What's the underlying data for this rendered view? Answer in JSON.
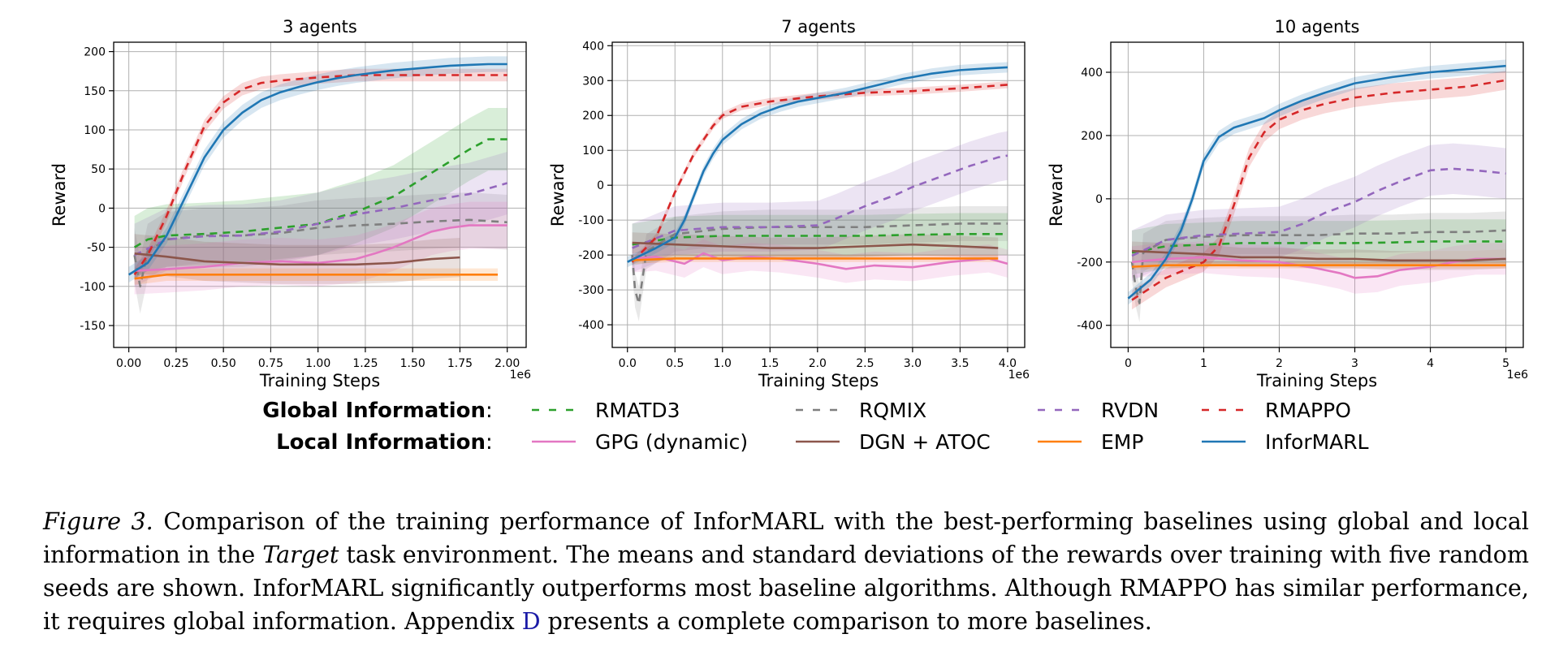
{
  "chart_data": [
    {
      "type": "line",
      "title": "3 agents",
      "xlabel": "Training Steps",
      "ylabel": "Reward",
      "x_offset_label": "1e6",
      "xlim": [
        -0.08,
        2.1
      ],
      "ylim": [
        -178,
        212
      ],
      "xticks": [
        0.0,
        0.25,
        0.5,
        0.75,
        1.0,
        1.25,
        1.5,
        1.75,
        2.0
      ],
      "xtick_labels": [
        "0.00",
        "0.25",
        "0.50",
        "0.75",
        "1.00",
        "1.25",
        "1.50",
        "1.75",
        "2.00"
      ],
      "yticks": [
        -150,
        -100,
        -50,
        0,
        50,
        100,
        150,
        200
      ],
      "grid": true,
      "series": [
        {
          "name": "RMATD3",
          "x": [
            0.03,
            0.1,
            0.2,
            0.4,
            0.6,
            0.8,
            1.0,
            1.1,
            1.2,
            1.3,
            1.4,
            1.5,
            1.6,
            1.7,
            1.8,
            1.9,
            2.0
          ],
          "y": [
            -50,
            -40,
            -35,
            -33,
            -30,
            -25,
            -20,
            -12,
            -5,
            5,
            15,
            30,
            45,
            60,
            75,
            88,
            88
          ],
          "band": 40
        },
        {
          "name": "RQMIX",
          "x": [
            0.03,
            0.06,
            0.1,
            0.2,
            0.4,
            0.6,
            0.8,
            1.0,
            1.2,
            1.4,
            1.6,
            1.8,
            2.0
          ],
          "y": [
            -60,
            -100,
            -55,
            -40,
            -35,
            -35,
            -32,
            -25,
            -22,
            -20,
            -17,
            -15,
            -18
          ],
          "band": 35
        },
        {
          "name": "RVDN",
          "x": [
            0.03,
            0.2,
            0.4,
            0.6,
            0.8,
            1.0,
            1.2,
            1.4,
            1.6,
            1.8,
            1.9,
            2.0
          ],
          "y": [
            -60,
            -40,
            -36,
            -35,
            -30,
            -20,
            -8,
            0,
            10,
            18,
            25,
            32
          ],
          "band": 40
        },
        {
          "name": "RMAPPO",
          "x": [
            0.03,
            0.1,
            0.2,
            0.3,
            0.4,
            0.5,
            0.6,
            0.7,
            0.8,
            0.9,
            1.0,
            1.2,
            1.4,
            1.6,
            1.8,
            2.0
          ],
          "y": [
            -85,
            -60,
            -10,
            50,
            105,
            135,
            152,
            160,
            163,
            165,
            167,
            170,
            170,
            170,
            170,
            170
          ],
          "band": 8
        },
        {
          "name": "GPG (dynamic)",
          "x": [
            0.03,
            0.2,
            0.4,
            0.6,
            0.8,
            1.0,
            1.2,
            1.3,
            1.4,
            1.5,
            1.6,
            1.7,
            1.8,
            2.0
          ],
          "y": [
            -80,
            -78,
            -75,
            -70,
            -68,
            -70,
            -65,
            -58,
            -50,
            -40,
            -30,
            -25,
            -22,
            -22
          ],
          "band": 30
        },
        {
          "name": "DGN + ATOC",
          "x": [
            0.03,
            0.2,
            0.4,
            0.6,
            0.8,
            1.0,
            1.2,
            1.4,
            1.6,
            1.75
          ],
          "y": [
            -58,
            -62,
            -68,
            -70,
            -72,
            -72,
            -72,
            -70,
            -65,
            -63
          ],
          "band": 25
        },
        {
          "name": "EMP",
          "x": [
            0.03,
            0.2,
            0.5,
            1.0,
            1.5,
            1.95
          ],
          "y": [
            -90,
            -85,
            -85,
            -85,
            -85,
            -85
          ],
          "band": 8
        },
        {
          "name": "InforMARL",
          "x": [
            0.0,
            0.1,
            0.2,
            0.3,
            0.4,
            0.5,
            0.6,
            0.7,
            0.8,
            0.9,
            1.0,
            1.1,
            1.2,
            1.3,
            1.4,
            1.5,
            1.6,
            1.7,
            1.8,
            1.9,
            2.0
          ],
          "y": [
            -85,
            -70,
            -35,
            15,
            65,
            100,
            122,
            138,
            148,
            155,
            161,
            166,
            170,
            173,
            176,
            178,
            180,
            182,
            183,
            184,
            184
          ],
          "band": 10
        }
      ]
    },
    {
      "type": "line",
      "title": "7 agents",
      "xlabel": "Training Steps",
      "ylabel": "Reward",
      "x_offset_label": "1e6",
      "xlim": [
        -0.16,
        4.18
      ],
      "ylim": [
        -465,
        410
      ],
      "xticks": [
        0.0,
        0.5,
        1.0,
        1.5,
        2.0,
        2.5,
        3.0,
        3.5,
        4.0
      ],
      "xtick_labels": [
        "0.0",
        "0.5",
        "1.0",
        "1.5",
        "2.0",
        "2.5",
        "3.0",
        "3.5",
        "4.0"
      ],
      "yticks": [
        -400,
        -300,
        -200,
        -100,
        0,
        100,
        200,
        300,
        400
      ],
      "grid": true,
      "series": [
        {
          "name": "RMATD3",
          "x": [
            0.05,
            0.5,
            1.0,
            1.5,
            2.0,
            2.5,
            3.0,
            3.5,
            4.0
          ],
          "y": [
            -170,
            -150,
            -145,
            -145,
            -145,
            -145,
            -142,
            -140,
            -140
          ],
          "band": 60
        },
        {
          "name": "RQMIX",
          "x": [
            0.05,
            0.08,
            0.12,
            0.2,
            0.5,
            1.0,
            1.5,
            2.0,
            2.5,
            3.0,
            3.5,
            4.0
          ],
          "y": [
            -200,
            -300,
            -340,
            -190,
            -140,
            -125,
            -120,
            -120,
            -120,
            -115,
            -110,
            -110
          ],
          "band": 50
        },
        {
          "name": "RVDN",
          "x": [
            0.05,
            0.5,
            1.0,
            1.5,
            2.0,
            2.2,
            2.5,
            2.8,
            3.0,
            3.3,
            3.6,
            3.9,
            4.0
          ],
          "y": [
            -180,
            -130,
            -120,
            -120,
            -115,
            -95,
            -60,
            -30,
            -5,
            25,
            55,
            80,
            85
          ],
          "band": 70
        },
        {
          "name": "RMAPPO",
          "x": [
            0.05,
            0.3,
            0.5,
            0.7,
            0.9,
            1.0,
            1.2,
            1.5,
            2.0,
            2.5,
            3.0,
            3.5,
            4.0
          ],
          "y": [
            -220,
            -150,
            -20,
            90,
            170,
            200,
            225,
            240,
            255,
            265,
            270,
            278,
            288
          ],
          "band": 10
        },
        {
          "name": "GPG (dynamic)",
          "x": [
            0.05,
            0.3,
            0.6,
            0.8,
            1.0,
            1.3,
            1.6,
            2.0,
            2.3,
            2.6,
            3.0,
            3.4,
            3.8,
            4.0
          ],
          "y": [
            -210,
            -205,
            -225,
            -195,
            -215,
            -205,
            -210,
            -225,
            -240,
            -230,
            -235,
            -220,
            -210,
            -225
          ],
          "band": 40
        },
        {
          "name": "DGN + ATOC",
          "x": [
            0.05,
            0.5,
            1.0,
            1.5,
            2.0,
            2.5,
            3.0,
            3.5,
            3.9
          ],
          "y": [
            -165,
            -170,
            -175,
            -180,
            -180,
            -175,
            -170,
            -175,
            -180
          ],
          "band": 30
        },
        {
          "name": "EMP",
          "x": [
            0.05,
            0.5,
            1.0,
            2.0,
            3.0,
            3.9
          ],
          "y": [
            -215,
            -210,
            -210,
            -210,
            -210,
            -210
          ],
          "band": 10
        },
        {
          "name": "InforMARL",
          "x": [
            0.0,
            0.3,
            0.5,
            0.6,
            0.7,
            0.8,
            0.9,
            1.0,
            1.2,
            1.4,
            1.6,
            1.8,
            2.0,
            2.3,
            2.6,
            2.9,
            3.2,
            3.5,
            3.8,
            4.0
          ],
          "y": [
            -220,
            -180,
            -150,
            -100,
            -30,
            40,
            90,
            130,
            175,
            205,
            225,
            240,
            250,
            265,
            285,
            305,
            320,
            330,
            335,
            338
          ],
          "band": 15
        }
      ]
    },
    {
      "type": "line",
      "title": "10 agents",
      "xlabel": "Training Steps",
      "ylabel": "Reward",
      "x_offset_label": "1e6",
      "xlim": [
        -0.23,
        5.23
      ],
      "ylim": [
        -470,
        495
      ],
      "xticks": [
        0,
        1,
        2,
        3,
        4,
        5
      ],
      "xtick_labels": [
        "0",
        "1",
        "2",
        "3",
        "4",
        "5"
      ],
      "yticks": [
        -400,
        -200,
        0,
        200,
        400
      ],
      "grid": true,
      "series": [
        {
          "name": "RMATD3",
          "x": [
            0.05,
            0.5,
            1.0,
            1.5,
            2.0,
            2.5,
            3.0,
            3.5,
            4.0,
            4.5,
            5.0
          ],
          "y": [
            -170,
            -150,
            -145,
            -140,
            -140,
            -140,
            -140,
            -138,
            -135,
            -135,
            -135
          ],
          "band": 70
        },
        {
          "name": "RQMIX",
          "x": [
            0.05,
            0.1,
            0.15,
            0.2,
            0.5,
            1.0,
            1.5,
            2.0,
            2.5,
            3.0,
            3.5,
            4.0,
            4.5,
            5.0
          ],
          "y": [
            -200,
            -280,
            -330,
            -170,
            -130,
            -120,
            -115,
            -115,
            -115,
            -110,
            -110,
            -105,
            -105,
            -100
          ],
          "band": 60
        },
        {
          "name": "RVDN",
          "x": [
            0.05,
            0.5,
            1.0,
            1.5,
            2.0,
            2.3,
            2.6,
            3.0,
            3.3,
            3.6,
            4.0,
            4.3,
            4.6,
            5.0
          ],
          "y": [
            -180,
            -130,
            -115,
            -110,
            -105,
            -80,
            -45,
            -10,
            25,
            55,
            90,
            95,
            90,
            80
          ],
          "band": 80
        },
        {
          "name": "RMAPPO",
          "x": [
            0.05,
            0.5,
            1.0,
            1.2,
            1.4,
            1.6,
            1.8,
            2.0,
            2.3,
            2.6,
            3.0,
            3.5,
            4.0,
            4.5,
            5.0
          ],
          "y": [
            -320,
            -250,
            -200,
            -150,
            -20,
            130,
            210,
            250,
            280,
            300,
            320,
            335,
            345,
            355,
            375
          ],
          "band": 30
        },
        {
          "name": "GPG (dynamic)",
          "x": [
            0.05,
            0.5,
            1.0,
            1.5,
            2.0,
            2.5,
            2.8,
            3.0,
            3.3,
            3.6,
            4.0,
            4.3,
            4.6,
            5.0
          ],
          "y": [
            -200,
            -190,
            -185,
            -195,
            -200,
            -220,
            -235,
            -250,
            -245,
            -225,
            -215,
            -200,
            -190,
            -190
          ],
          "band": 50
        },
        {
          "name": "DGN + ATOC",
          "x": [
            0.05,
            0.5,
            1.0,
            1.5,
            2.0,
            2.5,
            3.0,
            3.5,
            4.0,
            4.5,
            5.0
          ],
          "y": [
            -165,
            -170,
            -175,
            -185,
            -185,
            -190,
            -190,
            -195,
            -195,
            -195,
            -190
          ],
          "band": 30
        },
        {
          "name": "EMP",
          "x": [
            0.05,
            0.5,
            1.0,
            2.0,
            3.0,
            4.0,
            5.0
          ],
          "y": [
            -215,
            -210,
            -210,
            -210,
            -210,
            -210,
            -210
          ],
          "band": 10
        },
        {
          "name": "InforMARL",
          "x": [
            0.0,
            0.3,
            0.5,
            0.7,
            0.85,
            1.0,
            1.2,
            1.4,
            1.6,
            1.8,
            2.0,
            2.3,
            2.6,
            3.0,
            3.5,
            4.0,
            4.5,
            5.0
          ],
          "y": [
            -315,
            -255,
            -190,
            -100,
            0,
            120,
            195,
            225,
            240,
            255,
            280,
            310,
            335,
            365,
            385,
            400,
            410,
            420
          ],
          "band": 20
        }
      ]
    }
  ],
  "legend": {
    "global_label": "Global Information",
    "local_label": "Local Information",
    "colon": ":",
    "global_entries": [
      "RMATD3",
      "RQMIX",
      "RVDN",
      "RMAPPO"
    ],
    "local_entries": [
      "GPG (dynamic)",
      "DGN + ATOC",
      "EMP",
      "InforMARL"
    ]
  },
  "colors": {
    "RMATD3": "#2ca02c",
    "RQMIX": "#7f7f7f",
    "RVDN": "#9467bd",
    "RMAPPO": "#d62728",
    "GPG (dynamic)": "#e377c2",
    "DGN + ATOC": "#8c564b",
    "EMP": "#ff7f0e",
    "InforMARL": "#1f77b4"
  },
  "caption": {
    "figure_label": "Figure 3.",
    "text_1": " Comparison of the training performance of InforMARL with the best-performing baselines using global and local information in the ",
    "italic_word": "Target",
    "text_2": " task environment. The means and standard deviations of the rewards over training with five random seeds are shown. InforMARL significantly outperforms most baseline algorithms. Although RMAPPO has similar performance, it requires global information. Appendix ",
    "ref": "D",
    "text_3": " presents a complete comparison to more baselines."
  }
}
